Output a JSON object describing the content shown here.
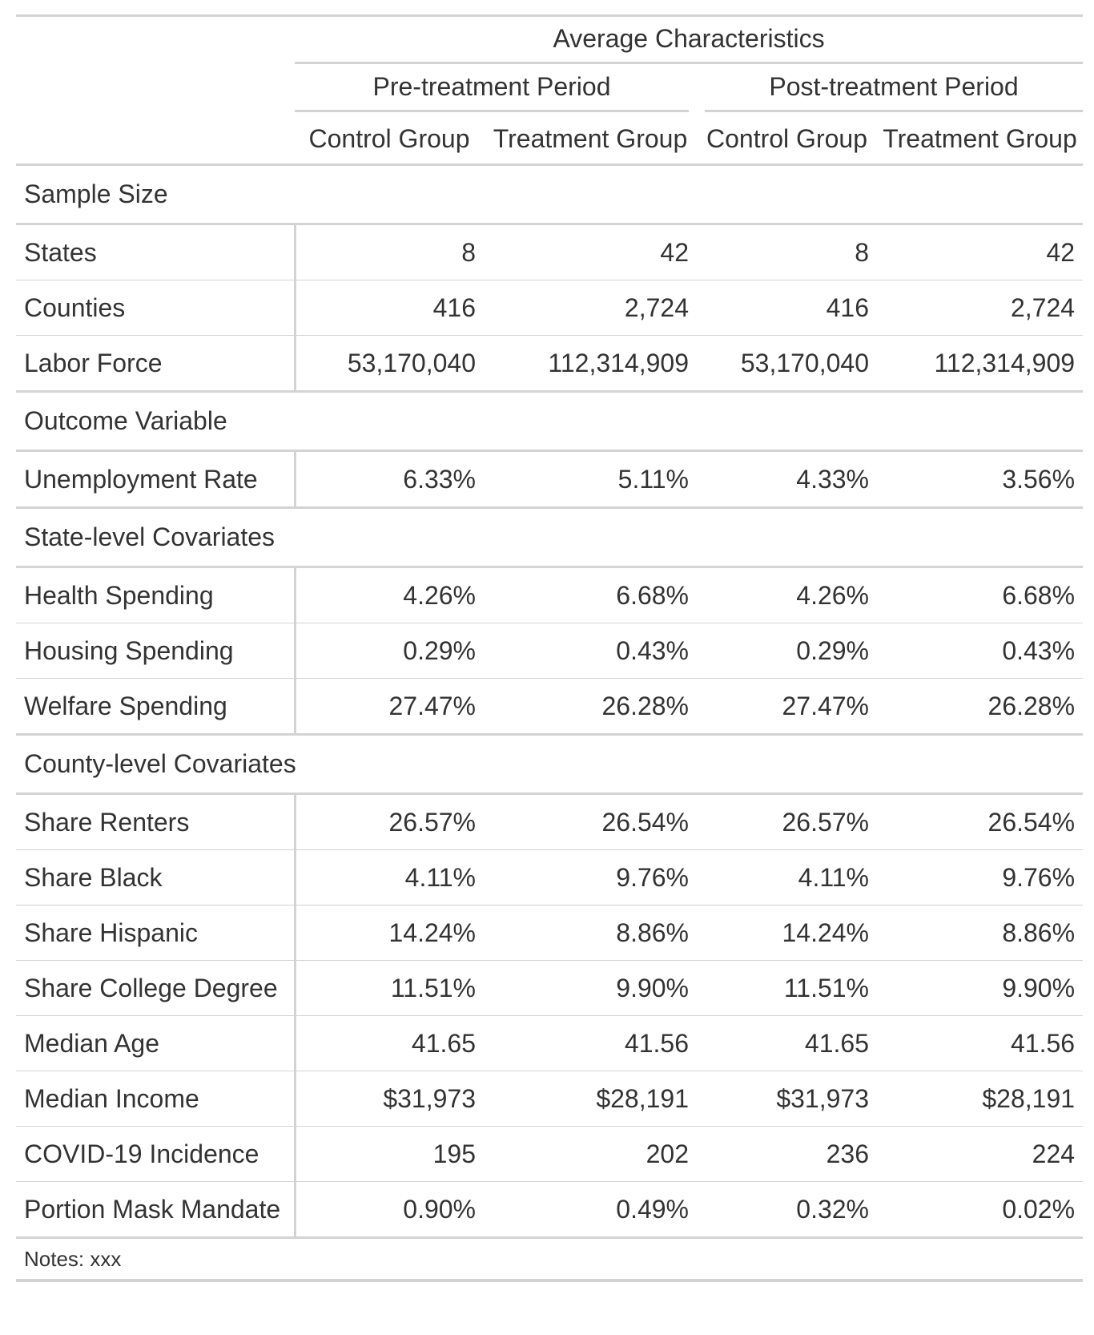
{
  "header": {
    "spanner_top": "Average Characteristics",
    "spanner_pre": "Pre-treatment Period",
    "spanner_post": "Post-treatment Period",
    "columns": [
      "Control Group",
      "Treatment Group",
      "Control Group",
      "Treatment Group"
    ]
  },
  "groups": [
    {
      "label": "Sample Size",
      "rows": [
        {
          "label": "States",
          "values": [
            "8",
            "42",
            "8",
            "42"
          ]
        },
        {
          "label": "Counties",
          "values": [
            "416",
            "2,724",
            "416",
            "2,724"
          ]
        },
        {
          "label": "Labor Force",
          "values": [
            "53,170,040",
            "112,314,909",
            "53,170,040",
            "112,314,909"
          ]
        }
      ]
    },
    {
      "label": "Outcome Variable",
      "rows": [
        {
          "label": "Unemployment Rate",
          "values": [
            "6.33%",
            "5.11%",
            "4.33%",
            "3.56%"
          ]
        }
      ]
    },
    {
      "label": "State-level Covariates",
      "rows": [
        {
          "label": "Health Spending",
          "values": [
            "4.26%",
            "6.68%",
            "4.26%",
            "6.68%"
          ]
        },
        {
          "label": "Housing Spending",
          "values": [
            "0.29%",
            "0.43%",
            "0.29%",
            "0.43%"
          ]
        },
        {
          "label": "Welfare Spending",
          "values": [
            "27.47%",
            "26.28%",
            "27.47%",
            "26.28%"
          ]
        }
      ]
    },
    {
      "label": "County-level Covariates",
      "rows": [
        {
          "label": "Share Renters",
          "values": [
            "26.57%",
            "26.54%",
            "26.57%",
            "26.54%"
          ]
        },
        {
          "label": "Share Black",
          "values": [
            "4.11%",
            "9.76%",
            "4.11%",
            "9.76%"
          ]
        },
        {
          "label": "Share Hispanic",
          "values": [
            "14.24%",
            "8.86%",
            "14.24%",
            "8.86%"
          ]
        },
        {
          "label": "Share College Degree",
          "values": [
            "11.51%",
            "9.90%",
            "11.51%",
            "9.90%"
          ]
        },
        {
          "label": "Median Age",
          "values": [
            "41.65",
            "41.56",
            "41.65",
            "41.56"
          ]
        },
        {
          "label": "Median Income",
          "values": [
            "$31,973",
            "$28,191",
            "$31,973",
            "$28,191"
          ]
        },
        {
          "label": "COVID-19 Incidence",
          "values": [
            "195",
            "202",
            "236",
            "224"
          ]
        },
        {
          "label": "Portion Mask Mandate",
          "values": [
            "0.90%",
            "0.49%",
            "0.32%",
            "0.02%"
          ]
        }
      ]
    }
  ],
  "footer": {
    "notes": "Notes: xxx"
  },
  "colors": {
    "text": "#333333",
    "rule": "#d3d3d3",
    "background": "#ffffff"
  }
}
